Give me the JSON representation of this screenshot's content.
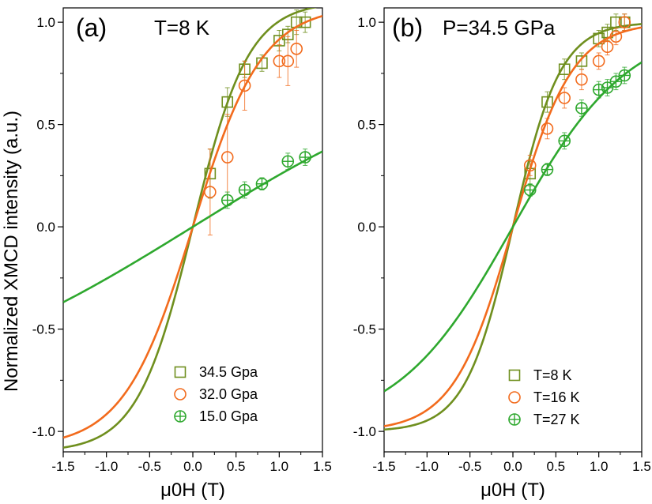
{
  "ylabel": "Normalized XMCD intensity (a.u.)",
  "chart_data": [
    {
      "type": "scatter",
      "panel": "(a)",
      "condition": "T=8 K",
      "xlabel": "μ0H (T)",
      "ylabel": "Normalized XMCD intensity (a.u.)",
      "xlim": [
        -1.5,
        1.5
      ],
      "ylim": [
        -1.1,
        1.07
      ],
      "xticks": [
        "-1.5",
        "-1.0",
        "-0.5",
        "0.0",
        "0.5",
        "1.0",
        "1.5"
      ],
      "yticks": [
        "-1.0",
        "-0.5",
        "0.0",
        "0.5",
        "1.0"
      ],
      "legend_position": "bottom-right",
      "series": [
        {
          "name": "34.5 Gpa",
          "marker": "square",
          "color": "#6f8f1e",
          "x": [
            0.2,
            0.4,
            0.6,
            0.8,
            1.0,
            1.1,
            1.2,
            1.3
          ],
          "y": [
            0.26,
            0.61,
            0.77,
            0.8,
            0.91,
            0.94,
            1.0,
            1.0
          ],
          "err": [
            0.12,
            0.07,
            0.04,
            0.04,
            0.05,
            0.04,
            0.06,
            0.05
          ],
          "fit_sat": 1.1,
          "fit_k": 1.55
        },
        {
          "name": "32.0 Gpa",
          "marker": "circle",
          "color": "#f26b1d",
          "x": [
            0.2,
            0.4,
            0.6,
            1.0,
            1.1,
            1.2
          ],
          "y": [
            0.17,
            0.34,
            0.69,
            0.81,
            0.81,
            0.87
          ],
          "err": [
            0.21,
            0.21,
            0.12,
            0.08,
            0.12,
            0.09
          ],
          "fit_sat": 1.08,
          "fit_k": 1.25
        },
        {
          "name": "15.0 Gpa",
          "marker": "circleplus",
          "color": "#2ea82e",
          "x": [
            0.4,
            0.6,
            0.8,
            1.1,
            1.3
          ],
          "y": [
            0.13,
            0.18,
            0.21,
            0.32,
            0.34
          ],
          "err": [
            0.04,
            0.04,
            0.03,
            0.04,
            0.04
          ],
          "fit_sat": 0.9,
          "fit_k": 0.29
        }
      ]
    },
    {
      "type": "scatter",
      "panel": "(b)",
      "condition": "P=34.5 GPa",
      "xlabel": "μ0H (T)",
      "ylabel": "",
      "xlim": [
        -1.5,
        1.5
      ],
      "ylim": [
        -1.1,
        1.07
      ],
      "xticks": [
        "-1.5",
        "-1.0",
        "-0.5",
        "0.0",
        "0.5",
        "1.0",
        "1.5"
      ],
      "yticks": [
        "-1.0",
        "-0.5",
        "0.0",
        "0.5",
        "1.0"
      ],
      "legend_position": "bottom-right",
      "series": [
        {
          "name": "T=8 K",
          "marker": "square",
          "color": "#6f8f1e",
          "x": [
            0.2,
            0.4,
            0.6,
            0.8,
            1.0,
            1.1,
            1.2,
            1.3
          ],
          "y": [
            0.26,
            0.61,
            0.77,
            0.81,
            0.92,
            0.95,
            1.0,
            1.0
          ],
          "err": [
            0.06,
            0.05,
            0.05,
            0.04,
            0.04,
            0.04,
            0.04,
            0.04
          ],
          "fit_sat": 1.0,
          "fit_k": 1.8
        },
        {
          "name": "T=16 K",
          "marker": "circle",
          "color": "#f26b1d",
          "x": [
            0.2,
            0.4,
            0.6,
            0.8,
            1.0,
            1.1,
            1.2,
            1.3
          ],
          "y": [
            0.3,
            0.48,
            0.63,
            0.72,
            0.81,
            0.88,
            0.93,
            1.0
          ],
          "err": [
            0.05,
            0.05,
            0.05,
            0.05,
            0.04,
            0.04,
            0.04,
            0.04
          ],
          "fit_sat": 1.0,
          "fit_k": 1.45
        },
        {
          "name": "T=27 K",
          "marker": "circleplus",
          "color": "#2ea82e",
          "x": [
            0.2,
            0.4,
            0.6,
            0.8,
            1.0,
            1.1,
            1.2,
            1.3
          ],
          "y": [
            0.18,
            0.28,
            0.42,
            0.58,
            0.67,
            0.68,
            0.71,
            0.74
          ],
          "err": [
            0.03,
            0.03,
            0.04,
            0.04,
            0.04,
            0.04,
            0.04,
            0.04
          ],
          "fit_sat": 1.0,
          "fit_k": 0.74
        }
      ]
    }
  ]
}
